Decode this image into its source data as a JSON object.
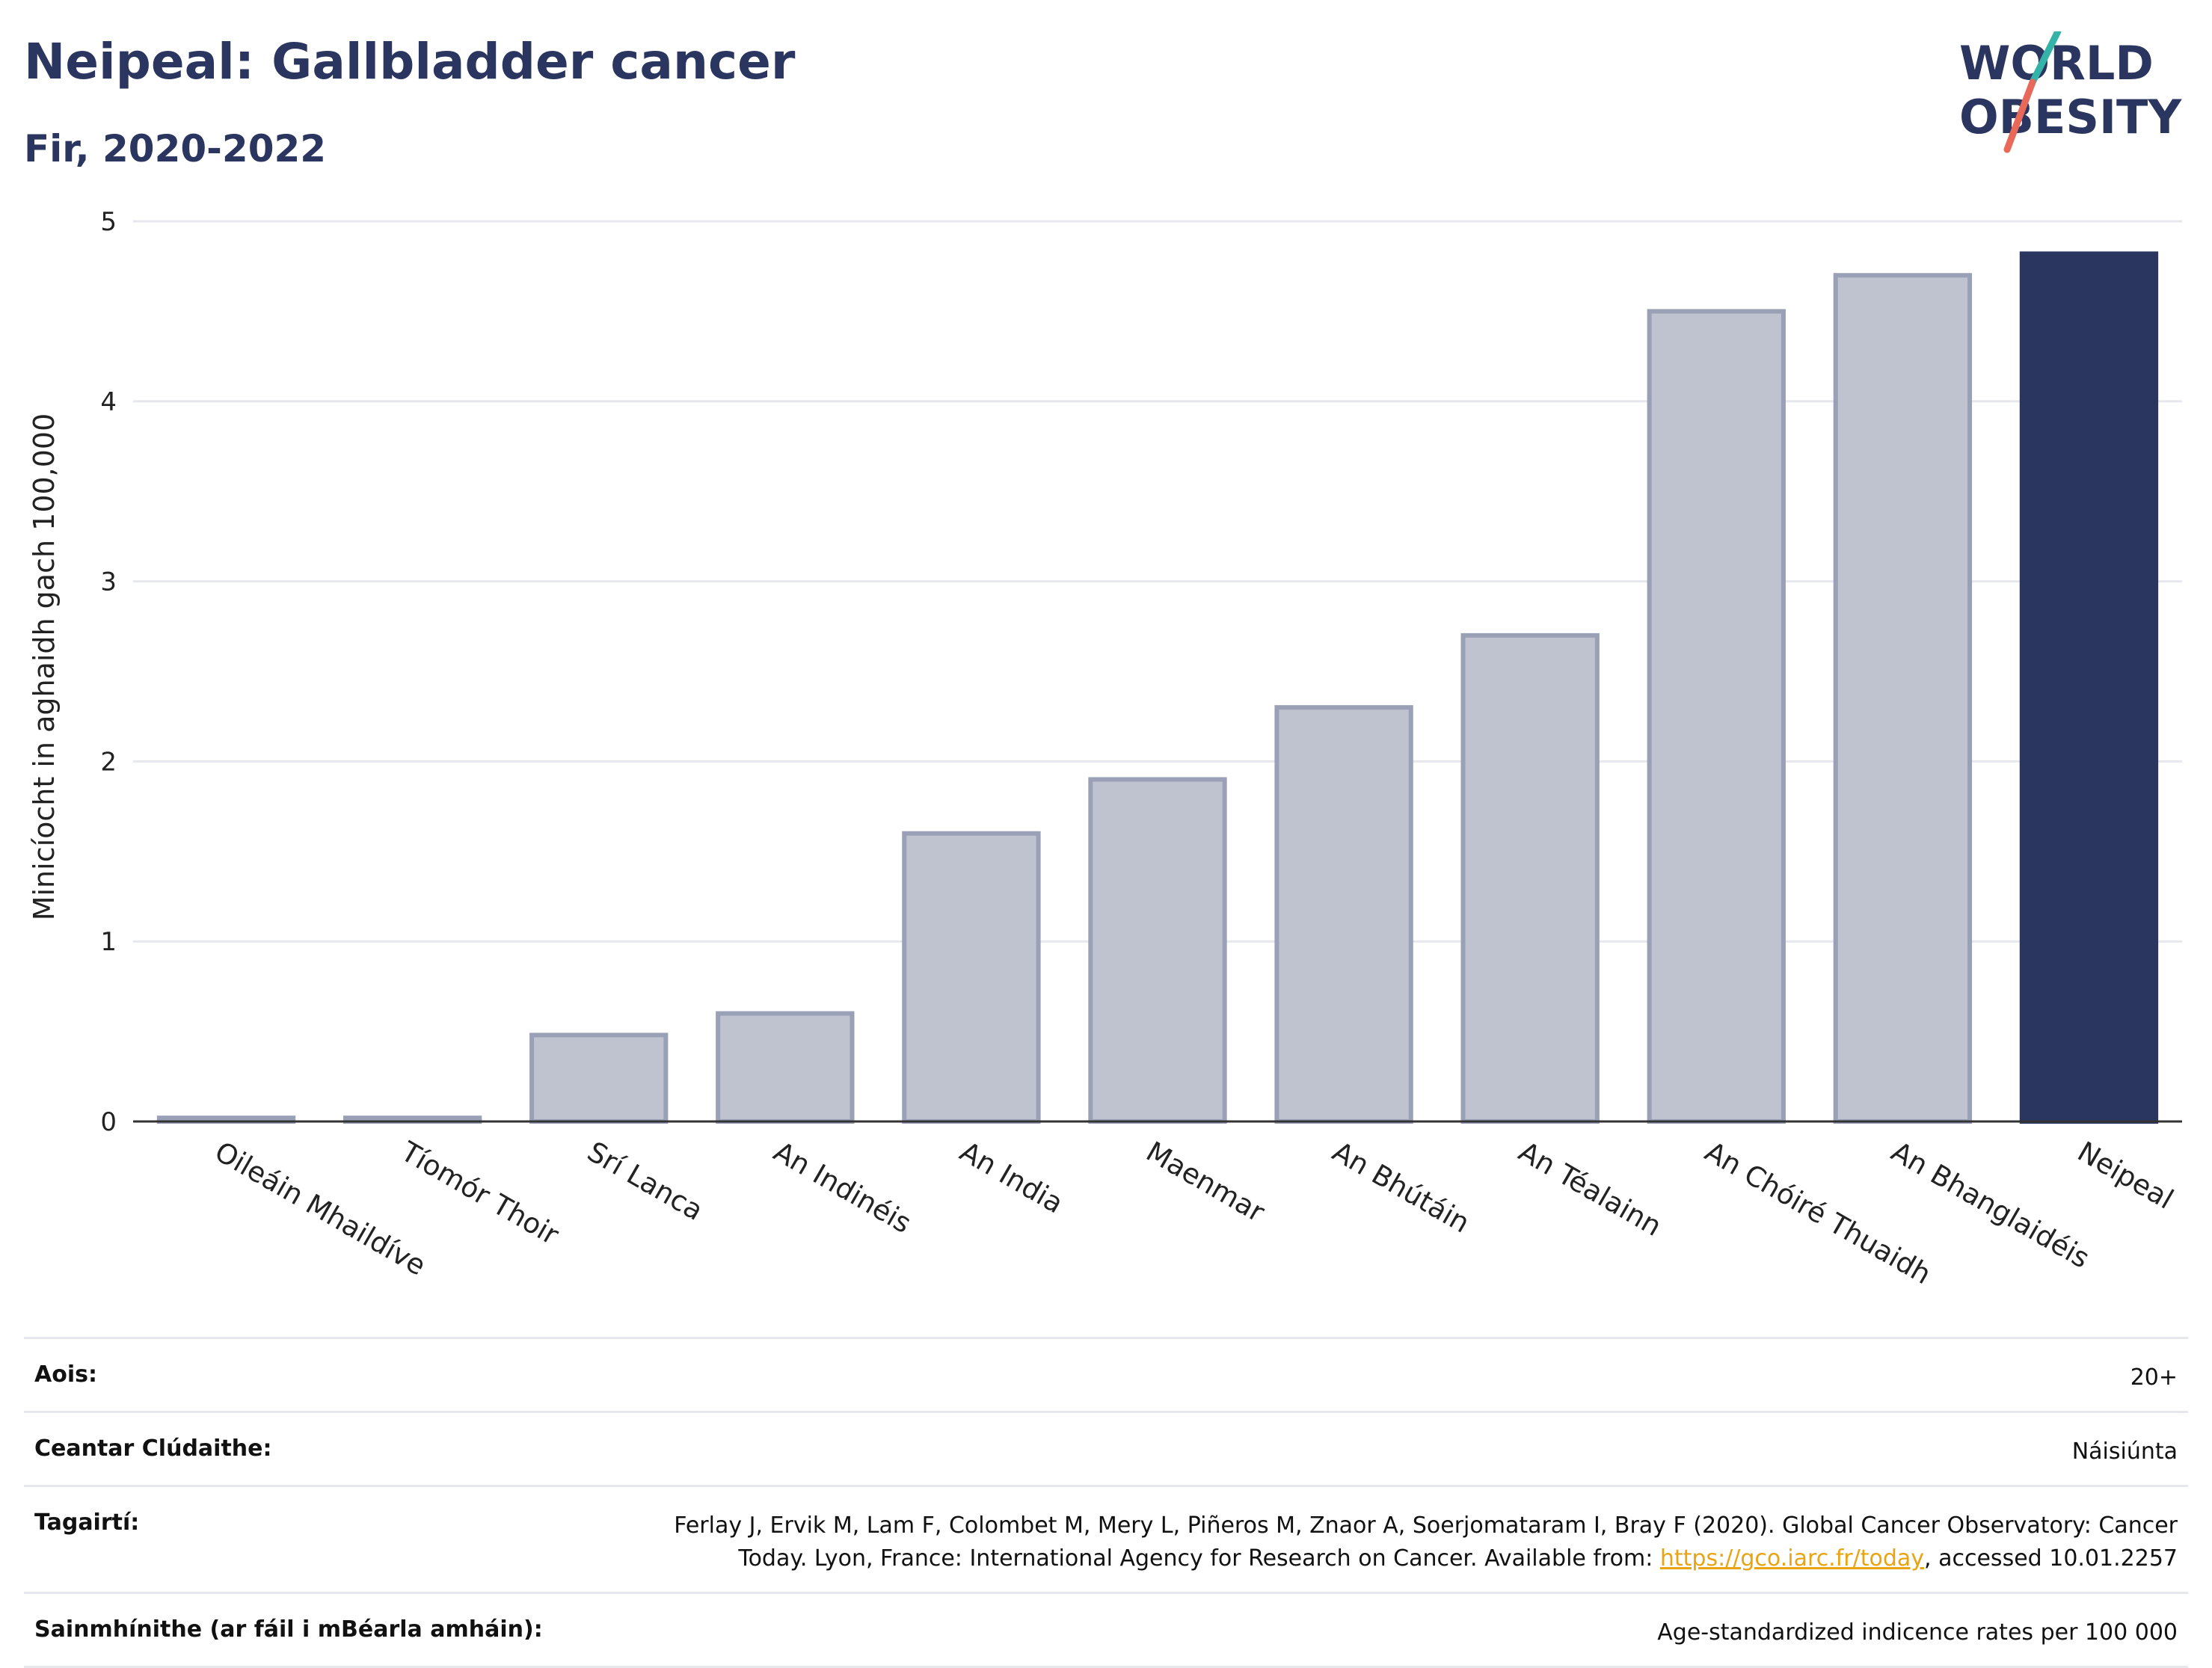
{
  "header": {
    "title": "Neipeal: Gallbladder cancer",
    "subtitle": "Fir, 2020-2022"
  },
  "logo": {
    "line1": "WORLD",
    "line2": "OBESITY",
    "name": "world-obesity-logo"
  },
  "colors": {
    "highlight": "#2a3560",
    "bar": "#bfc3d0",
    "bar_border": "#9aa0b6",
    "grid": "#e6e8ee",
    "link": "#e8a413"
  },
  "chart_data": {
    "type": "bar",
    "categories": [
      "Oileáin Mhaildíve",
      "Tíomór Thoir",
      "Srí Lanca",
      "An Indinéis",
      "An India",
      "Maenmar",
      "An Bhútáin",
      "An Téalainn",
      "An Chóiré Thuaidh",
      "An Bhanglaidéis",
      "Neipeal"
    ],
    "values": [
      0.02,
      0.02,
      0.48,
      0.6,
      1.6,
      1.9,
      2.3,
      2.7,
      4.5,
      4.7,
      4.82
    ],
    "highlight": "Neipeal",
    "ylabel": "Minicíocht in aghaidh gach 100,000",
    "xlabel": "",
    "ylim": [
      0,
      5
    ],
    "yticks": [
      0,
      1,
      2,
      3,
      4,
      5
    ],
    "grid": true
  },
  "info": {
    "age_label": "Aois:",
    "age_value": "20+",
    "coverage_label": "Ceantar Clúdaithe:",
    "coverage_value": "Náisiúnta",
    "refs_label": "Tagairtí:",
    "refs_line1": "Ferlay J, Ervik M, Lam F, Colombet M, Mery L, Piñeros M, Znaor A, Soerjomataram I, Bray F (2020). Global Cancer Observatory: Cancer",
    "refs_line2_pre": "Today. Lyon, France: International Agency for Research on Cancer. Available from: ",
    "refs_link": "https://gco.iarc.fr/today",
    "refs_line2_post": ", accessed 10.01.2257",
    "defs_label": "Sainmhínithe (ar fáil i mBéarla amháin):",
    "defs_value": "Age-standardized indicence rates per 100 000"
  }
}
